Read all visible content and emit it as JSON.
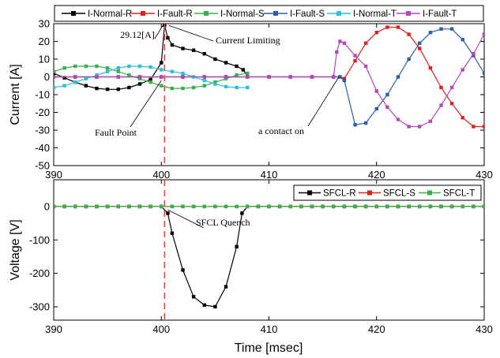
{
  "chart_data": [
    {
      "type": "line",
      "ylabel": "Current [A]",
      "xlim": [
        390,
        430
      ],
      "ylim": [
        -50,
        30
      ],
      "xticks": [
        390,
        400,
        410,
        420,
        430
      ],
      "yticks": [
        30,
        20,
        10,
        0,
        -10,
        -20,
        -30,
        -40,
        -50
      ],
      "legend_position": "top",
      "series": [
        {
          "name": "I-Normal-R",
          "color": "#000000",
          "marker": "square",
          "x": [
            390,
            391,
            392,
            393,
            394,
            395,
            396,
            397,
            398,
            399,
            400,
            400.3,
            400.6,
            401,
            402,
            403,
            404,
            405,
            406,
            407,
            407.6,
            408
          ],
          "y": [
            2,
            -0.5,
            -3,
            -5,
            -6.5,
            -7,
            -7,
            -6,
            -4,
            -1.5,
            8,
            29.12,
            22,
            18,
            16,
            15,
            13,
            10,
            8,
            6,
            4,
            0.5
          ]
        },
        {
          "name": "I-Fault-R",
          "color": "#e0201e",
          "marker": "square",
          "x": [
            390,
            392,
            394,
            396,
            398,
            400,
            402,
            404,
            406,
            408,
            410,
            412,
            414,
            416,
            416.6,
            417,
            418,
            419,
            420,
            421,
            422,
            423,
            424,
            425,
            426,
            427,
            428,
            429,
            430
          ],
          "y": [
            0,
            0,
            0,
            0,
            0,
            0,
            0,
            0,
            0,
            0,
            0,
            0,
            0,
            0,
            0,
            -1,
            9,
            19,
            25,
            28,
            28,
            24,
            16,
            5,
            -6,
            -15,
            -23,
            -28,
            -28
          ]
        },
        {
          "name": "I-Normal-S",
          "color": "#3bb04a",
          "marker": "square",
          "x": [
            390,
            391,
            392,
            393,
            394,
            395,
            396,
            397,
            398,
            399,
            400,
            401,
            402,
            403,
            404,
            405,
            406,
            407,
            408
          ],
          "y": [
            3,
            5,
            6,
            6,
            6,
            5,
            3,
            1,
            -1,
            -3,
            -5,
            -6.5,
            -6.5,
            -6,
            -5,
            -3,
            -1,
            1,
            2
          ]
        },
        {
          "name": "I-Fault-S",
          "color": "#2e5ea5",
          "marker": "square",
          "x": [
            390,
            392,
            394,
            396,
            398,
            400,
            402,
            404,
            406,
            408,
            410,
            412,
            414,
            416,
            416.6,
            417,
            418,
            419,
            420,
            421,
            422,
            423,
            424,
            425,
            426,
            427,
            428,
            429,
            430
          ],
          "y": [
            0,
            0,
            0,
            0,
            0,
            0,
            0,
            0,
            0,
            0,
            0,
            0,
            0,
            0,
            0,
            -2,
            -27,
            -26,
            -18,
            -10,
            0,
            10,
            19,
            25,
            27,
            27,
            21,
            12,
            2
          ]
        },
        {
          "name": "I-Normal-T",
          "color": "#2fbfd6",
          "marker": "square",
          "x": [
            390,
            391,
            392,
            393,
            394,
            395,
            396,
            397,
            398,
            399,
            400,
            401,
            402,
            403,
            404,
            405,
            406,
            407,
            408
          ],
          "y": [
            -6,
            -5,
            -3,
            -1,
            1,
            3,
            5,
            6,
            6,
            5.5,
            4,
            3,
            2,
            0,
            -2,
            -4,
            -5.5,
            -6,
            -6
          ]
        },
        {
          "name": "I-Fault-T",
          "color": "#b249b6",
          "marker": "square",
          "x": [
            390,
            392,
            394,
            396,
            398,
            400,
            402,
            404,
            406,
            408,
            410,
            412,
            414,
            416,
            416.3,
            416.6,
            417,
            418,
            419,
            420,
            421,
            422,
            423,
            424,
            425,
            426,
            427,
            428,
            429,
            430
          ],
          "y": [
            0,
            0,
            0,
            0,
            0,
            0,
            0,
            0,
            0,
            0,
            0,
            0,
            0,
            0,
            14,
            20,
            19,
            12,
            6,
            -8,
            -17,
            -24,
            -28,
            -28,
            -25,
            -16,
            -6,
            4,
            13,
            24
          ]
        }
      ],
      "annotations": [
        {
          "text": "29.12[A]",
          "x": 400.3,
          "y": 29.12
        },
        {
          "text": "Current Limiting",
          "x": 400.6,
          "y": 29
        },
        {
          "text": "Fault Point",
          "x": 400,
          "y": -2
        },
        {
          "text": "a contact on",
          "x": 416.5,
          "y": 0
        }
      ],
      "vline_x": 400.3,
      "grid": false
    },
    {
      "type": "line",
      "xlabel": "Time [msec]",
      "ylabel": "Voltage [V]",
      "xlim": [
        390,
        430
      ],
      "ylim": [
        -340,
        80
      ],
      "xticks": [
        390,
        400,
        410,
        420,
        430
      ],
      "yticks": [
        0,
        -100,
        -200,
        -300
      ],
      "legend_position": "top-right",
      "series": [
        {
          "name": "SFCL-R",
          "color": "#000000",
          "marker": "square",
          "x": [
            390,
            391,
            392,
            393,
            394,
            395,
            396,
            397,
            398,
            399,
            400,
            400.6,
            401,
            402,
            403,
            404,
            405,
            406,
            407,
            407.5,
            408,
            409,
            410,
            411,
            412,
            413,
            414,
            415,
            416,
            417,
            418,
            419,
            420,
            421,
            422,
            423,
            424,
            425,
            426,
            427,
            428,
            429,
            430
          ],
          "y": [
            0,
            0,
            0,
            0,
            0,
            0,
            0,
            0,
            0,
            0,
            0,
            -20,
            -80,
            -190,
            -270,
            -295,
            -300,
            -240,
            -120,
            -20,
            0,
            0,
            0,
            0,
            0,
            0,
            0,
            0,
            0,
            0,
            0,
            0,
            0,
            0,
            0,
            0,
            0,
            0,
            0,
            0,
            0,
            0,
            0
          ]
        },
        {
          "name": "SFCL-S",
          "color": "#e0201e",
          "marker": "square",
          "x": [
            390,
            391,
            392,
            393,
            394,
            395,
            396,
            397,
            398,
            399,
            400,
            401,
            402,
            403,
            404,
            405,
            406,
            407,
            408,
            409,
            410,
            411,
            412,
            413,
            414,
            415,
            416,
            417,
            418,
            419,
            420,
            421,
            422,
            423,
            424,
            425,
            426,
            427,
            428,
            429,
            430
          ],
          "y": [
            0,
            0,
            0,
            0,
            0,
            0,
            0,
            0,
            0,
            0,
            0,
            0,
            0,
            0,
            0,
            0,
            0,
            0,
            0,
            0,
            0,
            0,
            0,
            0,
            0,
            0,
            0,
            0,
            0,
            0,
            0,
            0,
            0,
            0,
            0,
            0,
            0,
            0,
            0,
            0,
            0
          ]
        },
        {
          "name": "SFCL-T",
          "color": "#3bb04a",
          "marker": "square",
          "x": [
            390,
            391,
            392,
            393,
            394,
            395,
            396,
            397,
            398,
            399,
            400,
            401,
            402,
            403,
            404,
            405,
            406,
            407,
            408,
            409,
            410,
            411,
            412,
            413,
            414,
            415,
            416,
            417,
            418,
            419,
            420,
            421,
            422,
            423,
            424,
            425,
            426,
            427,
            428,
            429,
            430
          ],
          "y": [
            0,
            0,
            0,
            0,
            0,
            0,
            0,
            0,
            0,
            0,
            0,
            0,
            0,
            0,
            0,
            0,
            0,
            0,
            0,
            0,
            0,
            0,
            0,
            0,
            0,
            0,
            0,
            0,
            0,
            0,
            0,
            0,
            0,
            0,
            0,
            0,
            0,
            0,
            0,
            0,
            0
          ]
        }
      ],
      "annotations": [
        {
          "text": "SFCL Quench",
          "x": 400.6,
          "y": -10
        }
      ],
      "vline_x": 400.3,
      "grid": false
    }
  ]
}
